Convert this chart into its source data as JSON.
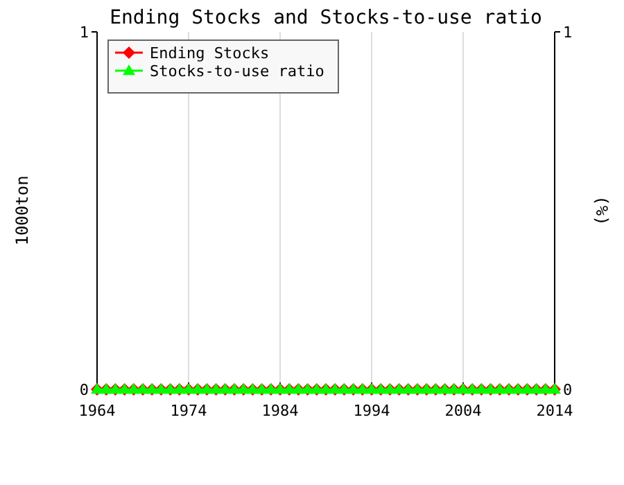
{
  "chart_data": {
    "type": "line",
    "title": "Ending Stocks and Stocks-to-use ratio",
    "ylabel": "1000ton",
    "y2label": "(%)",
    "x": [
      1964,
      1965,
      1966,
      1967,
      1968,
      1969,
      1970,
      1971,
      1972,
      1973,
      1974,
      1975,
      1976,
      1977,
      1978,
      1979,
      1980,
      1981,
      1982,
      1983,
      1984,
      1985,
      1986,
      1987,
      1988,
      1989,
      1990,
      1991,
      1992,
      1993,
      1994,
      1995,
      1996,
      1997,
      1998,
      1999,
      2000,
      2001,
      2002,
      2003,
      2004,
      2005,
      2006,
      2007,
      2008,
      2009,
      2010,
      2011,
      2012,
      2013,
      2014
    ],
    "series": [
      {
        "name": "Ending Stocks",
        "color": "#ff0000",
        "marker": "diamond",
        "values": [
          0,
          0,
          0,
          0,
          0,
          0,
          0,
          0,
          0,
          0,
          0,
          0,
          0,
          0,
          0,
          0,
          0,
          0,
          0,
          0,
          0,
          0,
          0,
          0,
          0,
          0,
          0,
          0,
          0,
          0,
          0,
          0,
          0,
          0,
          0,
          0,
          0,
          0,
          0,
          0,
          0,
          0,
          0,
          0,
          0,
          0,
          0,
          0,
          0,
          0,
          0
        ]
      },
      {
        "name": "Stocks-to-use ratio",
        "color": "#00ff00",
        "marker": "triangle",
        "values": [
          0,
          0,
          0,
          0,
          0,
          0,
          0,
          0,
          0,
          0,
          0,
          0,
          0,
          0,
          0,
          0,
          0,
          0,
          0,
          0,
          0,
          0,
          0,
          0,
          0,
          0,
          0,
          0,
          0,
          0,
          0,
          0,
          0,
          0,
          0,
          0,
          0,
          0,
          0,
          0,
          0,
          0,
          0,
          0,
          0,
          0,
          0,
          0,
          0,
          0,
          0
        ]
      }
    ],
    "xlim": [
      1964,
      2014
    ],
    "xticks": [
      1964,
      1974,
      1984,
      1994,
      2004,
      2014
    ],
    "ylim": [
      0,
      1
    ],
    "yticks": [
      0,
      1
    ],
    "y2lim": [
      0,
      1
    ],
    "y2ticks": [
      0,
      1
    ],
    "grid": "x",
    "legend": "top left"
  }
}
